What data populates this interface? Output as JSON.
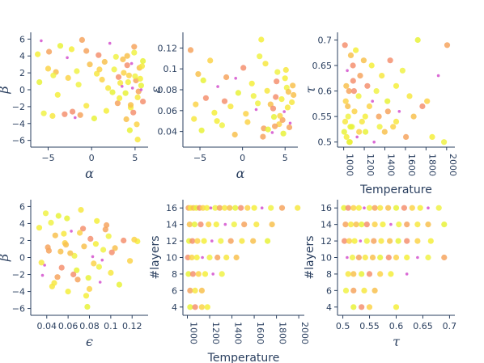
{
  "chart_data": [
    {
      "type": "scatter",
      "id": "p1",
      "xlabel": "α",
      "ylabel": "β",
      "xlim": [
        -7,
        6.5
      ],
      "ylim": [
        -6.8,
        6.8
      ],
      "xticks": [
        -5,
        0,
        5
      ],
      "xtick_labels": [
        "−5",
        "0",
        "5"
      ],
      "yticks": [
        -6,
        -4,
        -2,
        0,
        2,
        4,
        6
      ],
      "ytick_labels": [
        "−6",
        "−4",
        "−2",
        "0",
        "2",
        "4",
        "6"
      ],
      "series": [
        {
          "x": [
            -6.2,
            -5.8,
            -5.5,
            -4.9,
            -4.5,
            -4.1,
            -3.6,
            -3.1,
            -2.7,
            -2.3,
            -1.9,
            -1.5,
            -1.1,
            -0.6,
            -0.2,
            0.3,
            0.8,
            1.2,
            1.7,
            2.1,
            2.6,
            3.0,
            3.3,
            3.6,
            3.9,
            4.1,
            4.3,
            4.5,
            4.7,
            4.9,
            5.1,
            5.3,
            5.5,
            5.7,
            5.9,
            -5.0,
            -3.9,
            -2.8,
            -1.7,
            -0.6,
            0.6,
            1.5,
            2.4,
            3.1,
            3.7,
            4.2,
            4.6,
            5.0,
            5.4,
            5.8,
            4.0,
            4.4,
            4.8,
            5.2,
            5.6,
            3.5,
            2.8,
            4.9,
            5.3,
            4.1,
            -6.0,
            -2.2,
            0.9,
            3.2,
            5.7,
            -4.4,
            -1.3,
            1.9,
            4.5,
            5.9
          ],
          "y": [
            4.2,
            5.8,
            -2.8,
            4.5,
            -3.1,
            2.1,
            5.2,
            -2.9,
            1.4,
            4.8,
            -3.3,
            0.6,
            5.9,
            -1.9,
            3.0,
            -3.4,
            4.1,
            1.2,
            -2.5,
            5.5,
            2.4,
            -1.6,
            0.8,
            3.6,
            -0.4,
            2.9,
            1.7,
            -2.1,
            0.2,
            4.4,
            1.1,
            -0.9,
            2.6,
            0.5,
            -1.4,
            2.5,
            -0.6,
            3.8,
            2.2,
            4.6,
            1.9,
            3.3,
            -0.3,
            1.5,
            2.0,
            0.9,
            3.1,
            1.6,
            -0.2,
            2.8,
            -3.5,
            -4.8,
            -2.7,
            -4.1,
            1.3,
            0.4,
            3.9,
            5.1,
            -5.9,
            4.0,
            0.9,
            -2.6,
            2.4,
            -1.0,
            0.0,
            1.7,
            -3.0,
            0.2,
            -1.8,
            3.4
          ]
        }
      ]
    },
    {
      "type": "scatter",
      "id": "p2",
      "xlabel": "α",
      "ylabel": "ε",
      "xlim": [
        -7,
        6.5
      ],
      "ylim": [
        0.025,
        0.135
      ],
      "xticks": [
        -5,
        0,
        5
      ],
      "xtick_labels": [
        "−5",
        "0",
        "5"
      ],
      "yticks": [
        0.04,
        0.06,
        0.08,
        0.1,
        0.12
      ],
      "ytick_labels": [
        "0.04",
        "0.06",
        "0.08",
        "0.1",
        "0.12"
      ],
      "series": [
        {
          "x": [
            -6.1,
            -5.7,
            -5.2,
            -4.8,
            -4.3,
            -3.8,
            -3.3,
            -2.9,
            -2.4,
            -1.9,
            -1.4,
            -0.9,
            -0.5,
            0.1,
            0.6,
            1.1,
            1.6,
            2.0,
            2.5,
            2.9,
            3.3,
            3.7,
            4.0,
            4.3,
            4.6,
            4.9,
            5.2,
            5.5,
            5.8,
            6.0,
            -4.6,
            -2.1,
            0.4,
            2.2,
            3.5,
            4.1,
            4.7,
            5.3,
            5.9,
            3.0,
            3.9,
            4.4,
            5.0,
            5.6,
            1.8,
            2.4,
            2.7,
            5.4,
            4.8,
            3.6,
            -5.5,
            -3.0,
            -0.8,
            1.3,
            3.8,
            5.1
          ],
          "y": [
            0.118,
            0.052,
            0.095,
            0.041,
            0.072,
            0.108,
            0.058,
            0.083,
            0.046,
            0.092,
            0.064,
            0.037,
            0.077,
            0.101,
            0.049,
            0.086,
            0.061,
            0.112,
            0.043,
            0.079,
            0.066,
            0.054,
            0.088,
            0.047,
            0.071,
            0.059,
            0.082,
            0.044,
            0.068,
            0.075,
            0.089,
            0.069,
            0.057,
            0.128,
            0.039,
            0.097,
            0.051,
            0.063,
            0.084,
            0.042,
            0.073,
            0.055,
            0.091,
            0.048,
            0.067,
            0.035,
            0.105,
            0.078,
            0.038,
            0.062,
            0.066,
            0.05,
            0.091,
            0.074,
            0.045,
            0.099
          ]
        }
      ]
    },
    {
      "type": "scatter",
      "id": "p3",
      "xlabel": "Temperature",
      "ylabel": "τ",
      "xlim": [
        940,
        2080
      ],
      "ylim": [
        0.49,
        0.715
      ],
      "xticks": [
        1000,
        1200,
        1400,
        1600,
        1800,
        2000
      ],
      "xtick_labels": [
        "1000",
        "1200",
        "1400",
        "1600",
        "1800",
        "2000"
      ],
      "yticks": [
        0.5,
        0.55,
        0.6,
        0.65,
        0.7
      ],
      "ytick_labels": [
        "0.5",
        "0.55",
        "0.6",
        "0.65",
        "0.7"
      ],
      "series": [
        {
          "x": [
            1005,
            1012,
            1020,
            1028,
            1035,
            1044,
            1052,
            1060,
            1070,
            1080,
            1092,
            1105,
            1118,
            1130,
            1145,
            1160,
            1178,
            1195,
            1212,
            1230,
            1250,
            1272,
            1295,
            1318,
            1342,
            1370,
            1398,
            1425,
            1452,
            1480,
            1510,
            1540,
            1572,
            1605,
            1640,
            1680,
            1720,
            1765,
            1810,
            1860,
            1920,
            1975,
            2005,
            1015,
            1040,
            1065,
            1100,
            1150,
            1210,
            1280,
            1350,
            1430,
            1510,
            1025,
            1055,
            1090
          ],
          "y": [
            0.52,
            0.69,
            0.58,
            0.51,
            0.64,
            0.55,
            0.6,
            0.5,
            0.67,
            0.53,
            0.62,
            0.56,
            0.68,
            0.51,
            0.59,
            0.63,
            0.54,
            0.66,
            0.52,
            0.61,
            0.57,
            0.65,
            0.5,
            0.6,
            0.55,
            0.63,
            0.52,
            0.58,
            0.66,
            0.53,
            0.61,
            0.56,
            0.64,
            0.51,
            0.59,
            0.55,
            0.7,
            0.57,
            0.58,
            0.51,
            0.63,
            0.5,
            0.69,
            0.54,
            0.57,
            0.53,
            0.6,
            0.52,
            0.55,
            0.58,
            0.53,
            0.56,
            0.54,
            0.61,
            0.5,
            0.65
          ]
        }
      ]
    },
    {
      "type": "scatter",
      "id": "p4",
      "xlabel": "ϵ",
      "ylabel": "β",
      "xlim": [
        0.025,
        0.135
      ],
      "ylim": [
        -6.8,
        6.8
      ],
      "xticks": [
        0.04,
        0.06,
        0.08,
        0.1,
        0.12
      ],
      "xtick_labels": [
        "0.04",
        "0.06",
        "0.08",
        "0.1",
        "0.12"
      ],
      "yticks": [
        -6,
        -4,
        -2,
        0,
        2,
        4,
        6
      ],
      "ytick_labels": [
        "−6",
        "−4",
        "−2",
        "0",
        "2",
        "4",
        "6"
      ],
      "series": [
        {
          "x": [
            0.033,
            0.036,
            0.039,
            0.042,
            0.045,
            0.048,
            0.051,
            0.054,
            0.057,
            0.06,
            0.063,
            0.066,
            0.069,
            0.072,
            0.075,
            0.078,
            0.081,
            0.084,
            0.087,
            0.09,
            0.093,
            0.096,
            0.1,
            0.104,
            0.108,
            0.112,
            0.118,
            0.125,
            0.038,
            0.044,
            0.05,
            0.056,
            0.062,
            0.068,
            0.074,
            0.08,
            0.086,
            0.092,
            0.098,
            0.041,
            0.047,
            0.053,
            0.059,
            0.065,
            0.071,
            0.077,
            0.083,
            0.089,
            0.095,
            0.035,
            0.058,
            0.079,
            0.101,
            0.122
          ],
          "y": [
            3.5,
            -2.1,
            5.2,
            0.8,
            -3.4,
            2.6,
            4.9,
            -1.2,
            1.7,
            -4.0,
            3.1,
            0.2,
            -2.6,
            5.6,
            1.3,
            -5.8,
            2.2,
            -0.7,
            4.3,
            -2.9,
            0.9,
            3.8,
            -1.8,
            1.1,
            -3.2,
            2.0,
            -0.4,
            1.9,
            -0.9,
            4.1,
            -2.3,
            2.8,
            0.5,
            -1.5,
            3.4,
            -3.7,
            1.6,
            -0.3,
            2.5,
            1.2,
            -3.0,
            0.7,
            4.6,
            -2.0,
            2.9,
            -4.5,
            0.1,
            -1.1,
            3.3,
            -0.6,
            1.5,
            -2.4,
            0.6,
            2.1
          ]
        }
      ]
    },
    {
      "type": "scatter",
      "id": "p5",
      "xlabel": "Temperature",
      "ylabel": "#layers",
      "xlim": [
        960,
        2050
      ],
      "ylim": [
        3,
        17
      ],
      "xticks": [
        1000,
        1200,
        1400,
        1600,
        1800,
        2000
      ],
      "xtick_labels": [
        "1000",
        "1200",
        "1400",
        "1600",
        "1800",
        "2000"
      ],
      "yticks": [
        4,
        6,
        8,
        10,
        12,
        14,
        16
      ],
      "ytick_labels": [
        "4",
        "6",
        "8",
        "10",
        "12",
        "14",
        "16"
      ],
      "series": [
        {
          "x": [
            1010,
            1030,
            1055,
            1080,
            1110,
            1140,
            1175,
            1210,
            1250,
            1290,
            1335,
            1380,
            1430,
            1480,
            1540,
            1600,
            1670,
            1750,
            1850,
            1990,
            1020,
            1065,
            1120,
            1190,
            1260,
            1340,
            1420,
            1510,
            1620,
            1760,
            1015,
            1045,
            1090,
            1150,
            1220,
            1300,
            1390,
            1490,
            1590,
            1720,
            1005,
            1040,
            1085,
            1135,
            1200,
            1270,
            1350,
            1440,
            1010,
            1050,
            1100,
            1160,
            1230,
            1310,
            1025,
            1070,
            1130,
            1025,
            1070,
            1130,
            1180
          ],
          "y": [
            16,
            16,
            16,
            16,
            16,
            16,
            16,
            16,
            16,
            16,
            16,
            16,
            16,
            16,
            16,
            16,
            16,
            16,
            16,
            16,
            14,
            14,
            14,
            14,
            14,
            14,
            14,
            14,
            14,
            14,
            12,
            12,
            12,
            12,
            12,
            12,
            12,
            12,
            12,
            12,
            10,
            10,
            10,
            10,
            10,
            10,
            10,
            10,
            8,
            8,
            8,
            8,
            8,
            8,
            6,
            6,
            6,
            4,
            4,
            4,
            4
          ]
        }
      ]
    },
    {
      "type": "scatter",
      "id": "p6",
      "xlabel": "τ",
      "ylabel": "#layers",
      "xlim": [
        0.49,
        0.71
      ],
      "ylim": [
        3,
        17
      ],
      "xticks": [
        0.5,
        0.55,
        0.6,
        0.65,
        0.7
      ],
      "xtick_labels": [
        "0.5",
        "0.55",
        "0.6",
        "0.65",
        "0.7"
      ],
      "yticks": [
        4,
        6,
        8,
        10,
        12,
        14,
        16
      ],
      "ytick_labels": [
        "4",
        "6",
        "8",
        "10",
        "12",
        "14",
        "16"
      ],
      "series": [
        {
          "x": [
            0.502,
            0.51,
            0.52,
            0.53,
            0.54,
            0.55,
            0.56,
            0.57,
            0.585,
            0.6,
            0.615,
            0.63,
            0.645,
            0.66,
            0.68,
            0.505,
            0.515,
            0.525,
            0.535,
            0.545,
            0.56,
            0.575,
            0.59,
            0.605,
            0.62,
            0.64,
            0.66,
            0.69,
            0.503,
            0.512,
            0.522,
            0.533,
            0.545,
            0.558,
            0.572,
            0.588,
            0.604,
            0.62,
            0.64,
            0.665,
            0.508,
            0.518,
            0.53,
            0.542,
            0.556,
            0.57,
            0.586,
            0.6,
            0.62,
            0.64,
            0.66,
            0.69,
            0.51,
            0.52,
            0.535,
            0.55,
            0.57,
            0.59,
            0.62,
            0.506,
            0.52,
            0.54,
            0.56,
            0.52,
            0.535,
            0.55,
            0.6
          ],
          "y": [
            16,
            16,
            16,
            16,
            16,
            16,
            16,
            16,
            16,
            16,
            16,
            16,
            16,
            16,
            16,
            14,
            14,
            14,
            14,
            14,
            14,
            14,
            14,
            14,
            14,
            14,
            14,
            14,
            12,
            12,
            12,
            12,
            12,
            12,
            12,
            12,
            12,
            12,
            12,
            12,
            10,
            10,
            10,
            10,
            10,
            10,
            10,
            10,
            10,
            10,
            10,
            10,
            8,
            8,
            8,
            8,
            8,
            8,
            8,
            6,
            6,
            6,
            6,
            4,
            4,
            4,
            4
          ]
        }
      ]
    }
  ]
}
